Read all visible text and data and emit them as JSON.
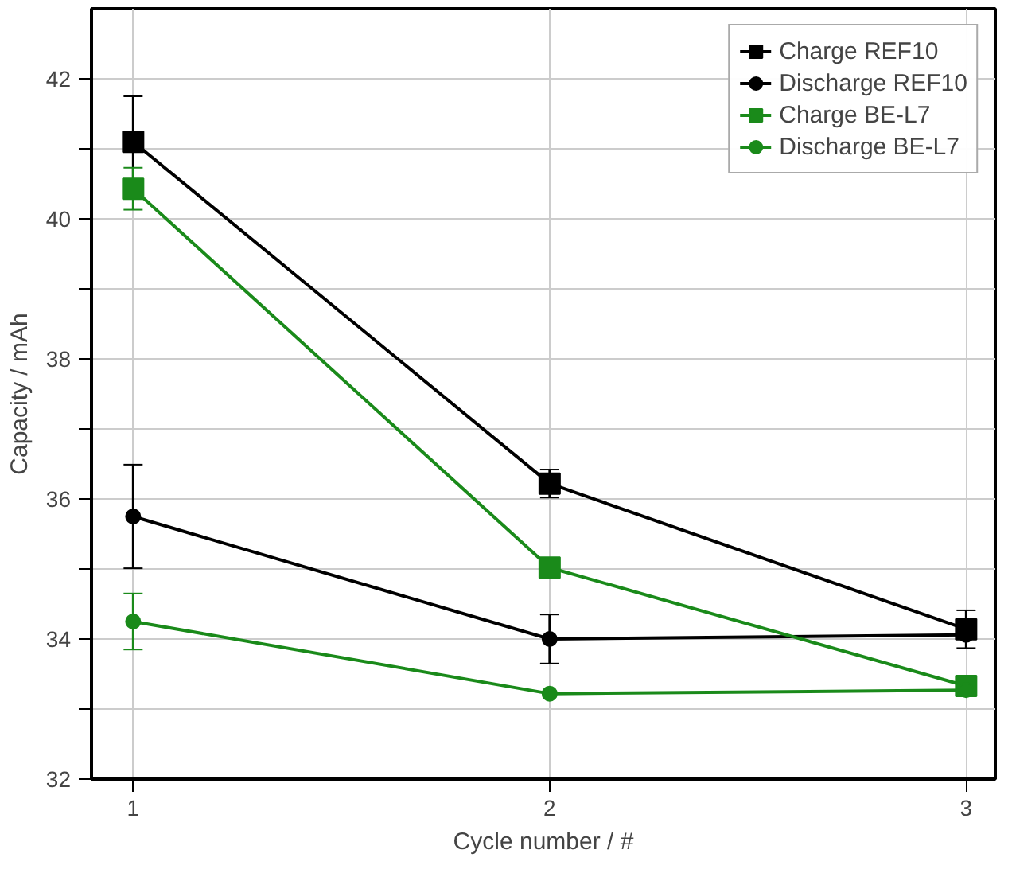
{
  "chart_data": {
    "type": "line",
    "xlabel": "Cycle number / #",
    "ylabel": "Capacity / mAh",
    "x": [
      1,
      2,
      3
    ],
    "xlim": [
      0.9,
      3.07
    ],
    "xticks": [
      1,
      2,
      3
    ],
    "ylim": [
      32,
      43
    ],
    "yticks": [
      32,
      {
        "value": 33,
        "label": null
      },
      34,
      {
        "value": 35,
        "label": null
      },
      36,
      {
        "value": 37,
        "label": null
      },
      38,
      {
        "value": 39,
        "label": null
      },
      40,
      {
        "value": 41,
        "label": null
      },
      42
    ],
    "grid": true,
    "legend": "top right",
    "line_style": "solid",
    "series": [
      {
        "name": "Charge REF10",
        "color": "#000000",
        "marker": "square",
        "values": [
          41.1,
          36.22,
          34.14
        ],
        "errors": [
          0.65,
          0.2,
          0.27
        ]
      },
      {
        "name": "Discharge REF10",
        "color": "#000000",
        "marker": "circle",
        "values": [
          35.75,
          34.0,
          34.06
        ],
        "errors": [
          0.74,
          0.35,
          null
        ]
      },
      {
        "name": "Charge BE-L7",
        "color": "#1a8a1a",
        "marker": "square",
        "values": [
          40.43,
          35.02,
          33.33
        ],
        "errors": [
          0.3,
          null,
          null
        ]
      },
      {
        "name": "Discharge BE-L7",
        "color": "#1a8a1a",
        "marker": "circle",
        "values": [
          34.25,
          33.22,
          33.27
        ],
        "errors": [
          0.4,
          null,
          null
        ]
      }
    ]
  }
}
